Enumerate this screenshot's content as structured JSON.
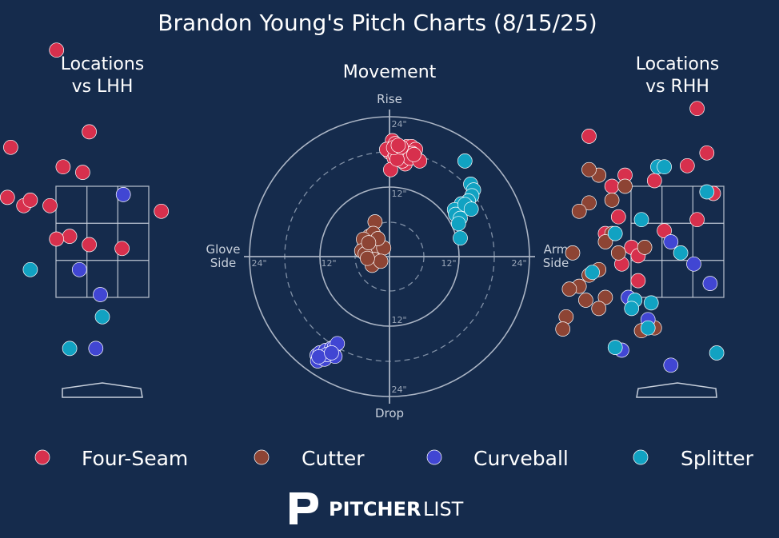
{
  "title": "Brandon Young's Pitch Charts (8/15/25)",
  "panels": {
    "lhh_title": [
      "Locations",
      "vs LHH"
    ],
    "movement_title": "Movement",
    "rhh_title": [
      "Locations",
      "vs RHH"
    ]
  },
  "movement_axes": {
    "top": "Rise",
    "bottom": "Drop",
    "left": [
      "Glove",
      "Side"
    ],
    "right": [
      "Arm",
      "Side"
    ],
    "ring_labels": [
      "24\"",
      "12\"",
      "12\"",
      "24\""
    ]
  },
  "colors": {
    "Four-Seam": "#d7304d",
    "Cutter": "#8d4434",
    "Curveball": "#4146d3",
    "Splitter": "#11a2c2",
    "background": "#152b4c"
  },
  "legend": [
    "Four-Seam",
    "Cutter",
    "Curveball",
    "Splitter"
  ],
  "brand": {
    "bold": "PITCHER",
    "light": "LIST"
  },
  "chart_data": [
    {
      "type": "scatter",
      "panel": "movement",
      "xlim": [
        -24,
        24
      ],
      "ylim": [
        -24,
        24
      ],
      "series": [
        {
          "name": "Four-Seam",
          "x": [
            0.5,
            1,
            1.5,
            2,
            0,
            3,
            -0.5,
            0.8,
            1.8,
            2.5,
            3.8,
            4.5,
            1,
            3.9,
            2.7,
            0.2,
            2.2,
            3.5,
            1.3,
            5.2,
            0.7,
            4.2,
            2,
            1.5
          ],
          "y": [
            20,
            19.5,
            19,
            18.5,
            18,
            19,
            18.5,
            17,
            17.5,
            18,
            19,
            18.5,
            17.5,
            17.8,
            16,
            15,
            16.5,
            17,
            16.8,
            16.5,
            18.8,
            17.6,
            18.9,
            19.2
          ]
        },
        {
          "name": "Cutter",
          "x": [
            -2.5,
            -3.5,
            -2.8,
            -4.5,
            -3,
            -2,
            -1.2,
            -4.8,
            -3.3,
            -2.3,
            -1,
            -2.6,
            -4.2,
            -3,
            -1.5,
            -3.8,
            -2,
            -3.6
          ],
          "y": [
            6,
            3.5,
            4,
            3,
            2,
            3,
            1.5,
            1,
            0.5,
            1,
            1.5,
            -0.5,
            0.5,
            -1.5,
            -0.8,
            -0.3,
            3.1,
            2.4
          ]
        },
        {
          "name": "Curveball",
          "x": [
            -12.5,
            -12,
            -11,
            -10,
            -9.5,
            -9,
            -12.4,
            -11.2,
            -9.4,
            -10.8,
            -12.2,
            -10
          ],
          "y": [
            -17,
            -16.6,
            -16.2,
            -15.8,
            -15.6,
            -15,
            -18,
            -17.7,
            -17.2,
            -16.9,
            -17.3,
            -16.6
          ],
          "marker_order": "last"
        },
        {
          "name": "Splitter",
          "x": [
            13,
            14,
            14.5,
            14.2,
            13.6,
            13.2,
            12.4,
            11.2,
            11.4,
            12.2,
            11.9,
            13,
            14.1,
            12.2
          ],
          "y": [
            16.5,
            12.5,
            11.5,
            10.5,
            9.6,
            8.8,
            9.1,
            8.1,
            7.3,
            6.6,
            5.7,
            9,
            8.2,
            3.2
          ]
        }
      ]
    },
    {
      "type": "scatter",
      "panel": "locations_vs_lhh",
      "series": [
        {
          "name": "Four-Seam",
          "x": [
            -0.7,
            -1.4,
            -0.6,
            -0.2,
            -0.3,
            -2.5,
            -1.9,
            -1.45,
            -1.2,
            -1.1,
            -0.8,
            -0.5,
            -0.2,
            0.3,
            -2.0,
            -1.75,
            -1.7,
            -1.9,
            -0.7,
            0.9
          ],
          "y": [
            5.95,
            4.2,
            3.85,
            4.48,
            3.75,
            2.85,
            3.05,
            3.3,
            3.15,
            3.25,
            3.15,
            2.6,
            2.45,
            2.38,
            2.4,
            2.22,
            1.9,
            2.05,
            2.55,
            3.05
          ]
        },
        {
          "name": "Curveball",
          "x": [
            0.32,
            -0.35,
            -0.03,
            -1.75,
            -0.1
          ],
          "y": [
            3.35,
            2.0,
            1.55,
            1.2,
            0.58
          ]
        },
        {
          "name": "Splitter",
          "x": [
            -1.1,
            0.0,
            -0.5
          ],
          "y": [
            2.0,
            1.15,
            0.58
          ]
        }
      ]
    },
    {
      "type": "scatter",
      "panel": "locations_vs_rhh",
      "series": [
        {
          "name": "Four-Seam",
          "x": [
            -1.35,
            -1.0,
            -0.8,
            0.3,
            0.15,
            -0.35,
            0.45,
            0.55,
            0.3,
            -0.9,
            -1.1,
            -0.7,
            -0.85,
            -0.6,
            -0.2,
            -0.6
          ],
          "y": [
            4.4,
            3.5,
            3.7,
            4.9,
            3.87,
            3.6,
            4.1,
            3.37,
            2.9,
            2.95,
            2.65,
            2.4,
            2.1,
            1.8,
            2.7,
            2.25
          ]
        },
        {
          "name": "Cutter",
          "x": [
            -0.8,
            -1.0,
            -1.35,
            -1.5,
            -1.0,
            -1.1,
            -0.9,
            -0.5,
            -1.6,
            -1.2,
            -1.35,
            -1.5,
            -1.65,
            -1.1,
            -1.4,
            -1.2,
            -1.7,
            -1.75,
            -0.55,
            -0.35,
            -1.2,
            -1.35
          ],
          "y": [
            3.5,
            3.25,
            3.2,
            3.05,
            2.65,
            2.5,
            2.3,
            2.4,
            2.3,
            2.0,
            1.9,
            1.7,
            1.65,
            1.5,
            1.45,
            1.3,
            1.15,
            0.93,
            0.9,
            0.95,
            3.7,
            3.8
          ]
        },
        {
          "name": "Curveball",
          "x": [
            -0.1,
            0.25,
            0.5,
            -0.75,
            -0.45,
            -0.85,
            -0.1
          ],
          "y": [
            2.5,
            2.1,
            1.75,
            1.5,
            1.1,
            0.55,
            0.28
          ]
        },
        {
          "name": "Splitter",
          "x": [
            -0.3,
            -0.2,
            0.45,
            -1.3,
            -0.95,
            -0.55,
            0.05,
            -0.65,
            -0.7,
            -0.95,
            -0.4,
            0.6,
            -0.45
          ],
          "y": [
            3.85,
            3.85,
            3.4,
            1.95,
            2.65,
            2.9,
            2.3,
            1.45,
            1.3,
            0.6,
            1.4,
            0.5,
            0.95
          ]
        }
      ]
    }
  ]
}
